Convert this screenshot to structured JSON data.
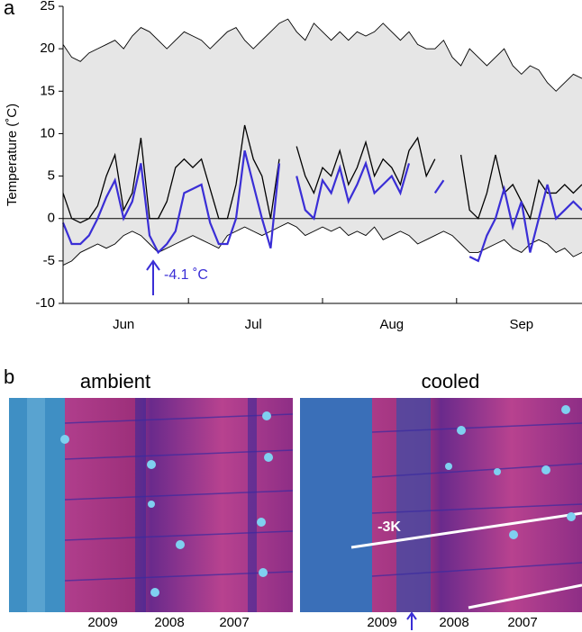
{
  "panel_a_label": "a",
  "chart_data": {
    "type": "line",
    "ylabel": "Temperature (˚C)",
    "annotation": "-4.1 ˚C",
    "categories": [
      null,
      null,
      null,
      null,
      null,
      null,
      null,
      "Jun",
      null,
      null,
      null,
      null,
      null,
      null,
      null,
      null,
      null,
      null,
      null,
      null,
      null,
      null,
      "Jul",
      null,
      null,
      null,
      null,
      null,
      null,
      null,
      null,
      null,
      null,
      null,
      null,
      null,
      null,
      null,
      "Aug",
      null,
      null,
      null,
      null,
      null,
      null,
      null,
      null,
      null,
      null,
      null,
      null,
      null,
      null,
      "Sep",
      null,
      null,
      null,
      null,
      null,
      null,
      null
    ],
    "ylim": [
      -10,
      25
    ],
    "yticks": [
      -10,
      -5,
      0,
      5,
      10,
      15,
      20,
      25
    ],
    "band_color": "#e6e6e6",
    "series": [
      {
        "color": "#000000",
        "values": [
          20.5,
          19,
          18.5,
          19.5,
          20,
          20.5,
          21,
          20,
          21.5,
          22.5,
          22,
          21,
          20,
          21,
          22,
          21.5,
          21,
          20,
          21,
          22,
          22.5,
          21,
          20,
          21,
          22,
          23,
          23.5,
          22,
          21,
          23,
          22,
          21,
          22,
          21,
          22,
          21.5,
          22,
          23,
          22,
          21,
          22,
          20.5,
          20,
          20,
          21,
          19,
          18,
          20,
          19,
          18,
          19,
          20,
          18,
          17,
          18,
          17.5,
          16,
          15,
          16,
          17,
          16.5
        ]
      },
      {
        "color": "#000000",
        "values": [
          -5.5,
          -5,
          -4,
          -3.5,
          -3,
          -3.5,
          -3,
          -2,
          -1.5,
          -2,
          -3,
          -4,
          -3.5,
          -3,
          -2.5,
          -2,
          -2.5,
          -3,
          -3.5,
          -2,
          -1.5,
          -1,
          -1.5,
          -2,
          -1.5,
          -1,
          -0.5,
          -1,
          -2,
          -1.5,
          -1,
          -1.5,
          -1,
          -2,
          -1.5,
          -2,
          -1,
          -2.5,
          -2,
          -1.5,
          -2,
          -3,
          -2.5,
          -2,
          -1.5,
          -2,
          -3,
          -4,
          -4,
          -3.5,
          -3,
          -2.5,
          -3.5,
          -4,
          -3,
          -2.5,
          -3,
          -4,
          -3.5,
          -4.5,
          -4
        ]
      },
      {
        "color": "#000000",
        "values": [
          3,
          0,
          -0.5,
          0,
          1.5,
          5,
          7.5,
          1,
          3,
          9.5,
          0,
          0,
          2,
          6,
          7,
          6,
          7,
          3.5,
          0,
          0,
          4,
          11,
          7,
          5,
          0,
          7,
          null,
          8.5,
          5,
          3,
          6,
          5,
          8,
          4,
          6,
          9,
          5,
          7,
          6,
          4,
          8,
          9.5,
          5,
          7,
          null,
          null,
          7.5,
          1,
          0,
          3,
          7.5,
          3,
          4,
          2,
          0,
          4.5,
          3,
          3,
          4,
          3,
          4
        ]
      },
      {
        "color": "#3a2ed6",
        "values": [
          -0.5,
          -3,
          -3,
          -2,
          0,
          2.5,
          4.5,
          0,
          2,
          6.5,
          -2,
          -4,
          -3,
          -1.5,
          3,
          3.5,
          4,
          -0.5,
          -3,
          -3,
          0,
          8,
          4,
          0,
          -3.5,
          6.5,
          null,
          5,
          1,
          0,
          4.5,
          3,
          6,
          2,
          4,
          6.5,
          3,
          4,
          5,
          3,
          6.5,
          null,
          null,
          3,
          4.5,
          null,
          null,
          -4.5,
          -5,
          -2,
          0,
          3.5,
          -1,
          2,
          -4,
          0,
          4,
          0,
          1,
          2,
          1
        ]
      }
    ]
  },
  "panel_b": {
    "label": "b",
    "images": [
      {
        "title": "ambient",
        "years": [
          "2009",
          "2008",
          "2007"
        ]
      },
      {
        "title": "cooled",
        "annotation": "-3K",
        "years": [
          "2009",
          "2008",
          "2007"
        ]
      }
    ]
  }
}
